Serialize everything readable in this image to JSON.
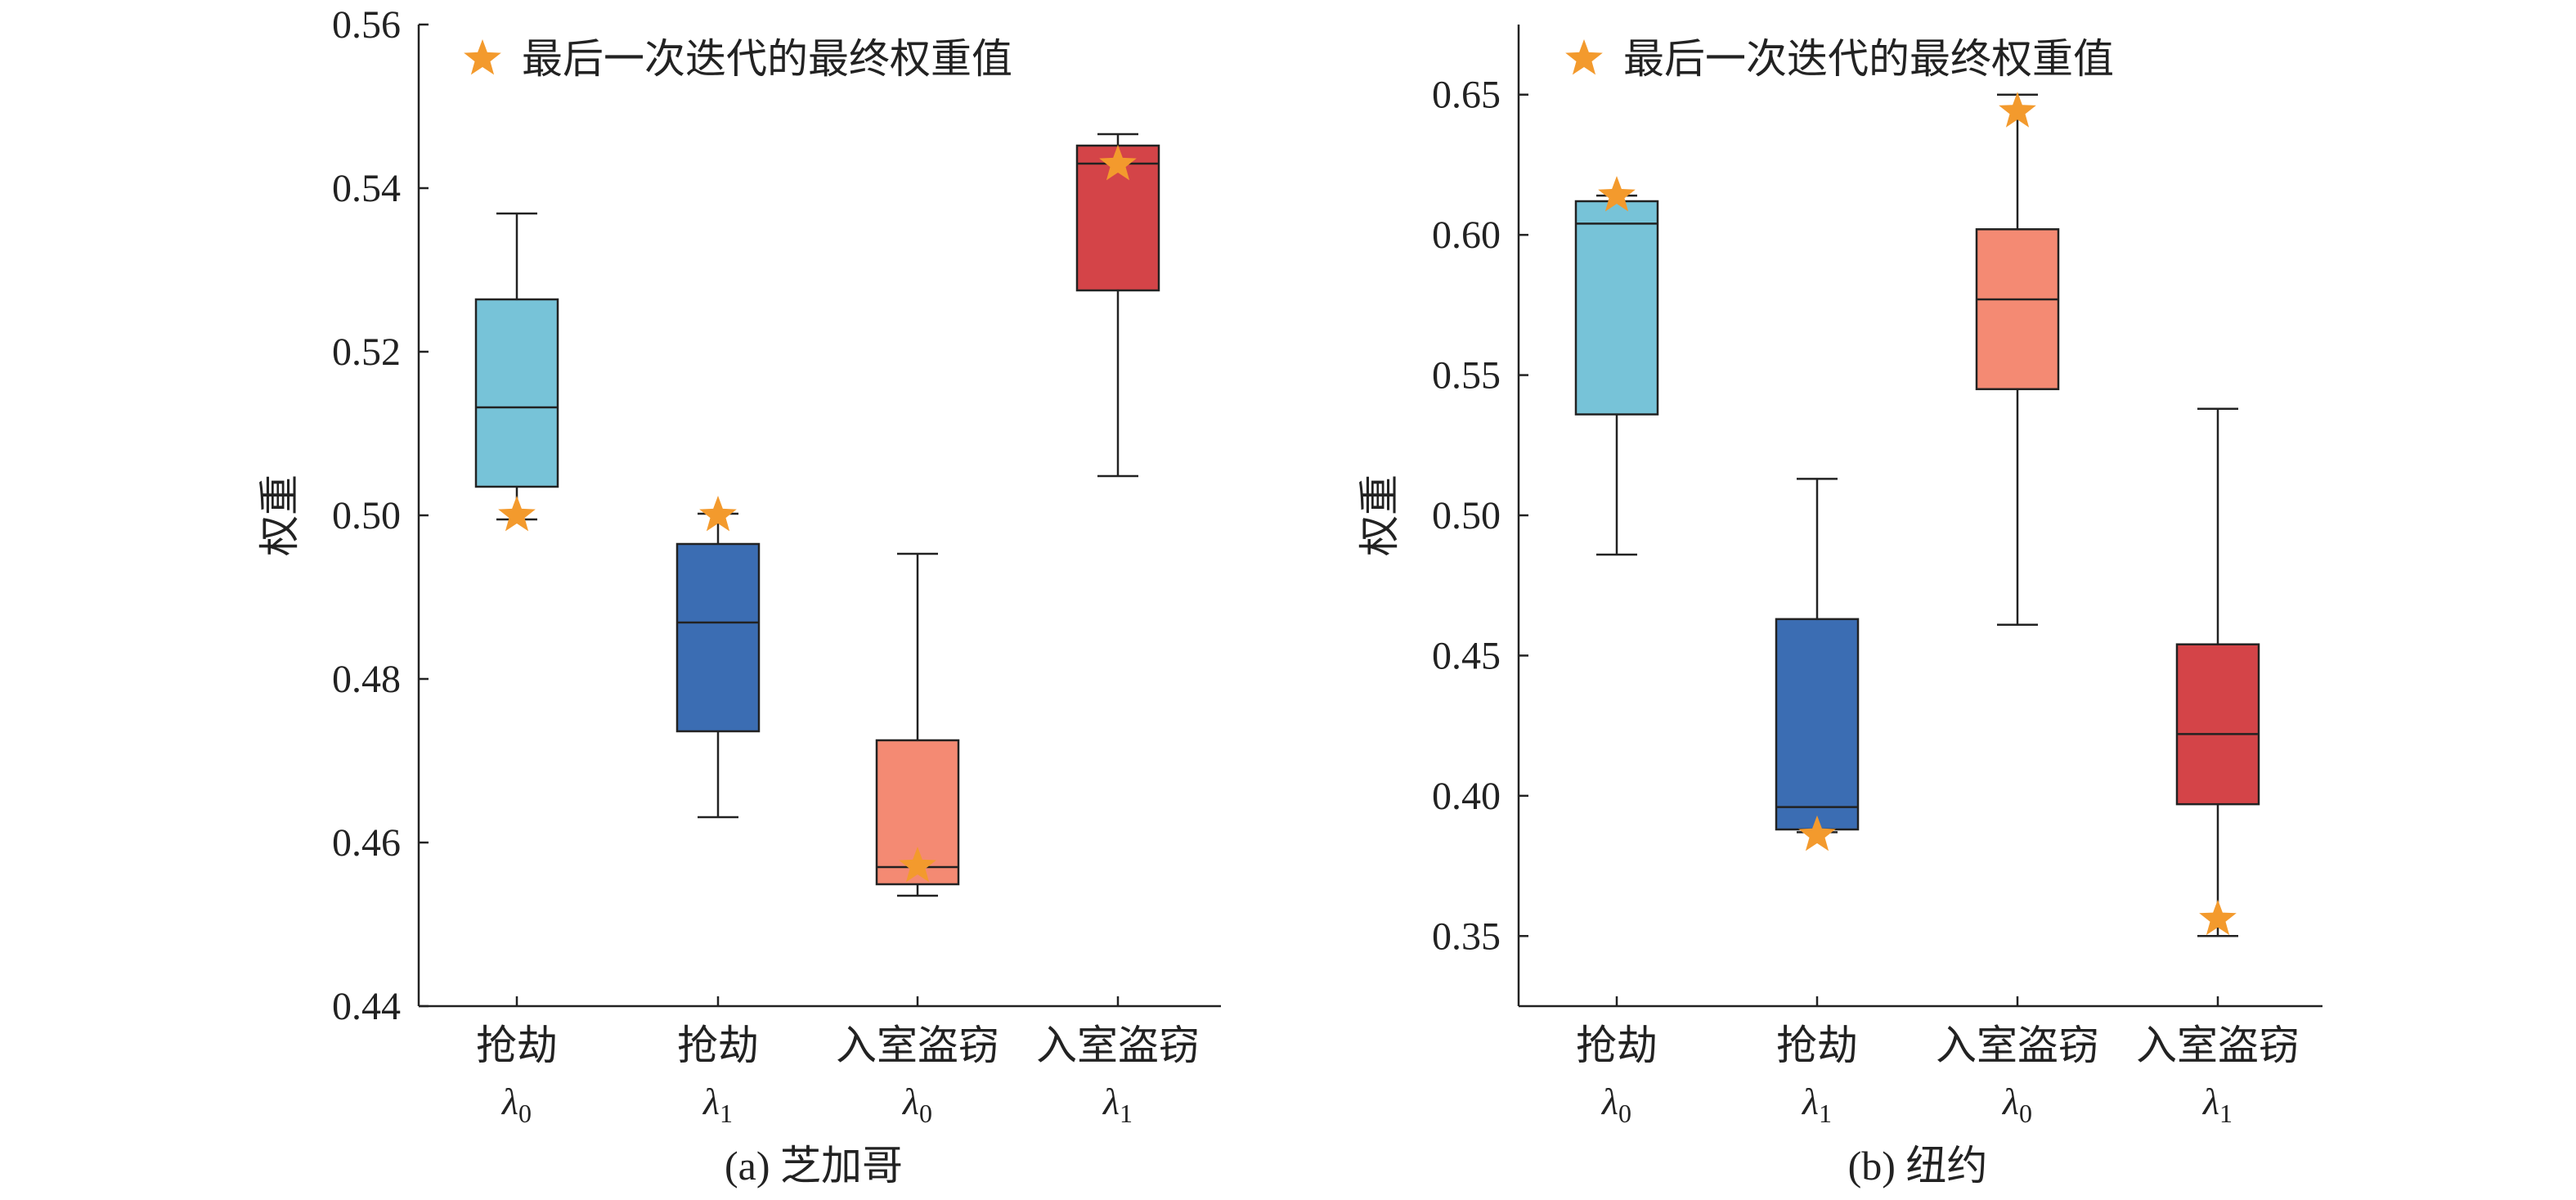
{
  "chart_data": [
    {
      "type": "box",
      "caption": "(a) 芝加哥",
      "ylabel": "权重",
      "ylim": [
        0.44,
        0.56
      ],
      "yticks": [
        "0.44",
        "0.46",
        "0.48",
        "0.50",
        "0.52",
        "0.54",
        "0.56"
      ],
      "legend": {
        "label": "最后一次迭代的最终权重值",
        "position": "top-left"
      },
      "categories": [
        {
          "name": "抢劫",
          "sub": "λ0",
          "color": "#77C3D8",
          "min": 0.4995,
          "q1": 0.5035,
          "median": 0.5132,
          "q3": 0.5264,
          "max": 0.5369,
          "final": 0.5
        },
        {
          "name": "抢劫",
          "sub": "λ1",
          "color": "#3B6DB3",
          "min": 0.4631,
          "q1": 0.4736,
          "median": 0.4869,
          "q3": 0.4965,
          "max": 0.5002,
          "final": 0.5
        },
        {
          "name": "入室盗窃",
          "sub": "λ0",
          "color": "#F48A73",
          "min": 0.4535,
          "q1": 0.4549,
          "median": 0.457,
          "q3": 0.4725,
          "max": 0.4953,
          "final": 0.4571
        },
        {
          "name": "入室盗窃",
          "sub": "λ1",
          "color": "#D44448",
          "min": 0.5048,
          "q1": 0.5275,
          "median": 0.543,
          "q3": 0.5452,
          "max": 0.5466,
          "final": 0.5429
        }
      ]
    },
    {
      "type": "box",
      "caption": "(b) 纽约",
      "ylabel": "权重",
      "ylim": [
        0.325,
        0.675
      ],
      "yticks": [
        "0.35",
        "0.40",
        "0.45",
        "0.50",
        "0.55",
        "0.60",
        "0.65"
      ],
      "legend": {
        "label": "最后一次迭代的最终权重值",
        "position": "top-left"
      },
      "categories": [
        {
          "name": "抢劫",
          "sub": "λ0",
          "color": "#77C3D8",
          "min": 0.486,
          "q1": 0.536,
          "median": 0.604,
          "q3": 0.612,
          "max": 0.614,
          "final": 0.614
        },
        {
          "name": "抢劫",
          "sub": "λ1",
          "color": "#3B6DB3",
          "min": 0.387,
          "q1": 0.388,
          "median": 0.396,
          "q3": 0.463,
          "max": 0.513,
          "final": 0.386
        },
        {
          "name": "入室盗窃",
          "sub": "λ0",
          "color": "#F48A73",
          "min": 0.461,
          "q1": 0.545,
          "median": 0.577,
          "q3": 0.602,
          "max": 0.65,
          "final": 0.644
        },
        {
          "name": "入室盗窃",
          "sub": "λ1",
          "color": "#D44448",
          "min": 0.35,
          "q1": 0.397,
          "median": 0.422,
          "q3": 0.454,
          "max": 0.538,
          "final": 0.356
        }
      ]
    }
  ]
}
